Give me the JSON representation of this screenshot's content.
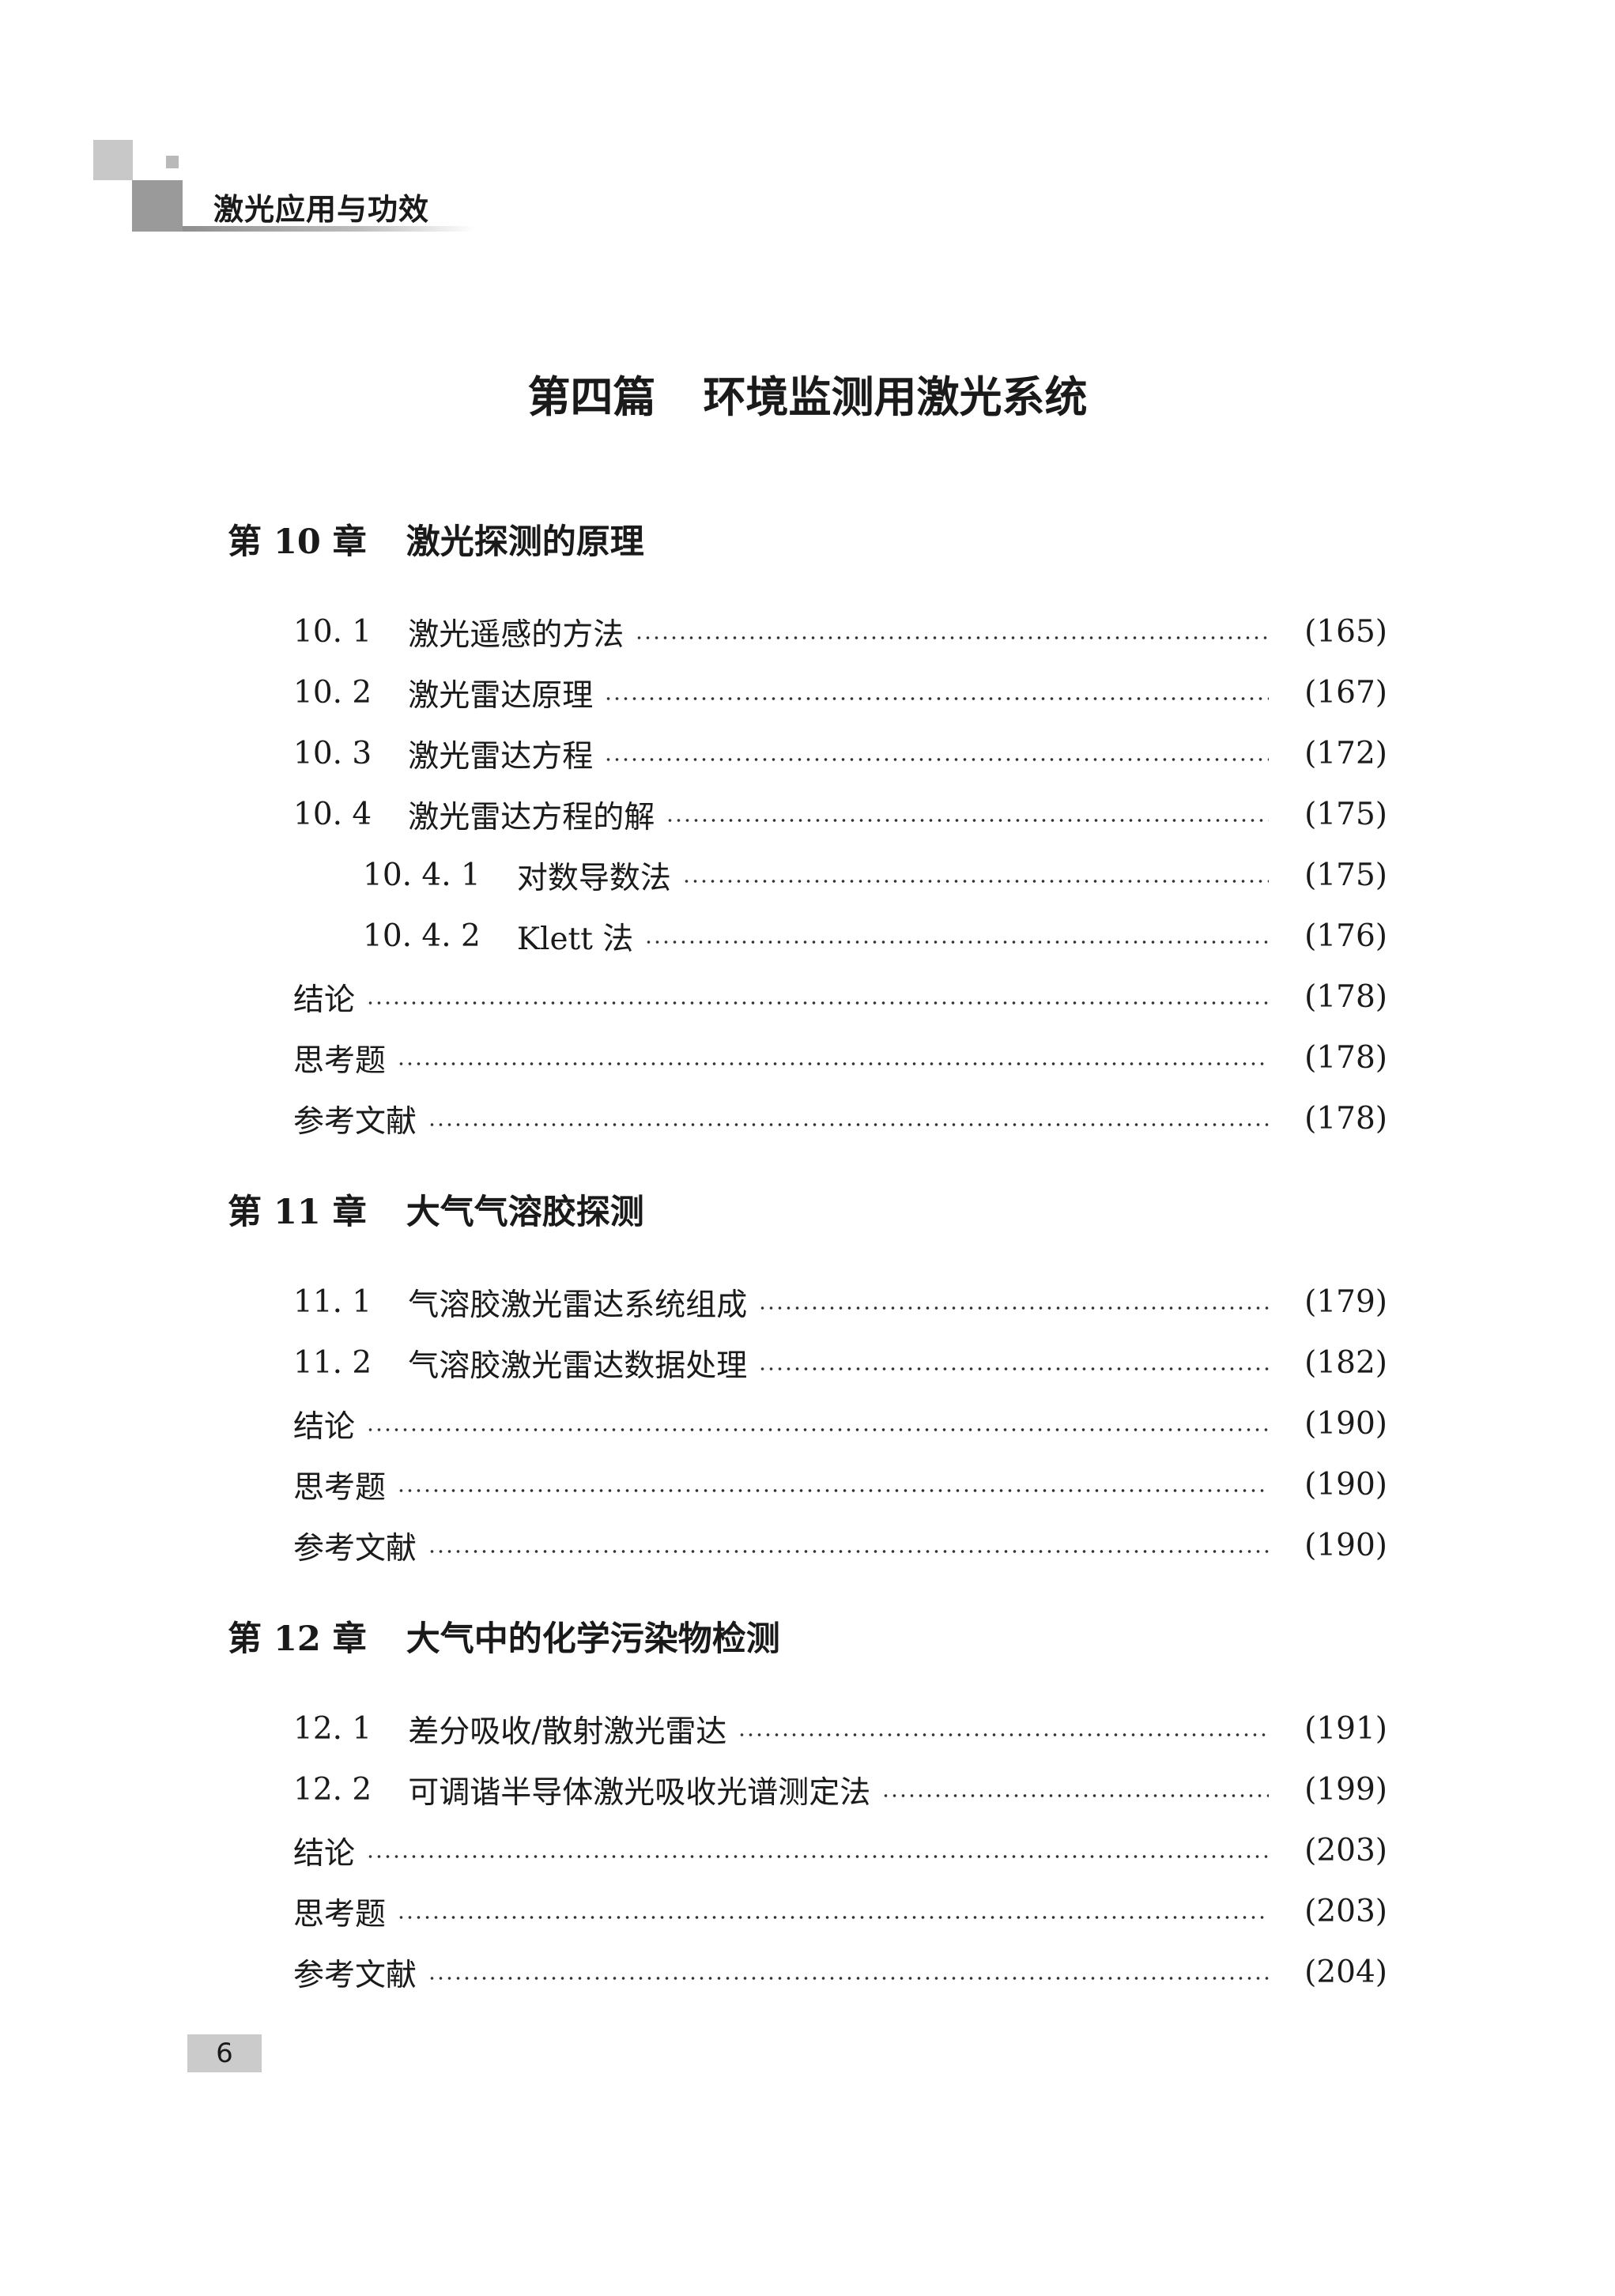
{
  "header": {
    "book_title": "激光应用与功效"
  },
  "part": {
    "label": "第四篇",
    "title": "环境监测用激光系统"
  },
  "chapters": [
    {
      "label": "第 10 章",
      "title": "激光探测的原理",
      "entries": [
        {
          "sec": "10. 1",
          "title": "激光遥感的方法",
          "page": "(165)",
          "level": 1
        },
        {
          "sec": "10. 2",
          "title": "激光雷达原理",
          "page": "(167)",
          "level": 1
        },
        {
          "sec": "10. 3",
          "title": "激光雷达方程",
          "page": "(172)",
          "level": 1
        },
        {
          "sec": "10. 4",
          "title": "激光雷达方程的解",
          "page": "(175)",
          "level": 1
        },
        {
          "sec": "10. 4. 1",
          "title": "对数导数法",
          "page": "(175)",
          "level": 2
        },
        {
          "sec": "10. 4. 2",
          "title": "Klett 法",
          "page": "(176)",
          "level": 2
        },
        {
          "sec": "",
          "title": "结论",
          "page": "(178)",
          "level": 1
        },
        {
          "sec": "",
          "title": "思考题",
          "page": "(178)",
          "level": 1
        },
        {
          "sec": "",
          "title": "参考文献",
          "page": "(178)",
          "level": 1
        }
      ]
    },
    {
      "label": "第 11 章",
      "title": "大气气溶胶探测",
      "entries": [
        {
          "sec": "11. 1",
          "title": "气溶胶激光雷达系统组成",
          "page": "(179)",
          "level": 1
        },
        {
          "sec": "11. 2",
          "title": "气溶胶激光雷达数据处理",
          "page": "(182)",
          "level": 1
        },
        {
          "sec": "",
          "title": "结论",
          "page": "(190)",
          "level": 1
        },
        {
          "sec": "",
          "title": "思考题",
          "page": "(190)",
          "level": 1
        },
        {
          "sec": "",
          "title": "参考文献",
          "page": "(190)",
          "level": 1
        }
      ]
    },
    {
      "label": "第 12 章",
      "title": "大气中的化学污染物检测",
      "entries": [
        {
          "sec": "12. 1",
          "title": "差分吸收/散射激光雷达",
          "page": "(191)",
          "level": 1
        },
        {
          "sec": "12. 2",
          "title": "可调谐半导体激光吸收光谱测定法",
          "page": "(199)",
          "level": 1
        },
        {
          "sec": "",
          "title": "结论",
          "page": "(203)",
          "level": 1
        },
        {
          "sec": "",
          "title": "思考题",
          "page": "(203)",
          "level": 1
        },
        {
          "sec": "",
          "title": "参考文献",
          "page": "(204)",
          "level": 1
        }
      ]
    }
  ],
  "footer": {
    "page_number": "6"
  }
}
